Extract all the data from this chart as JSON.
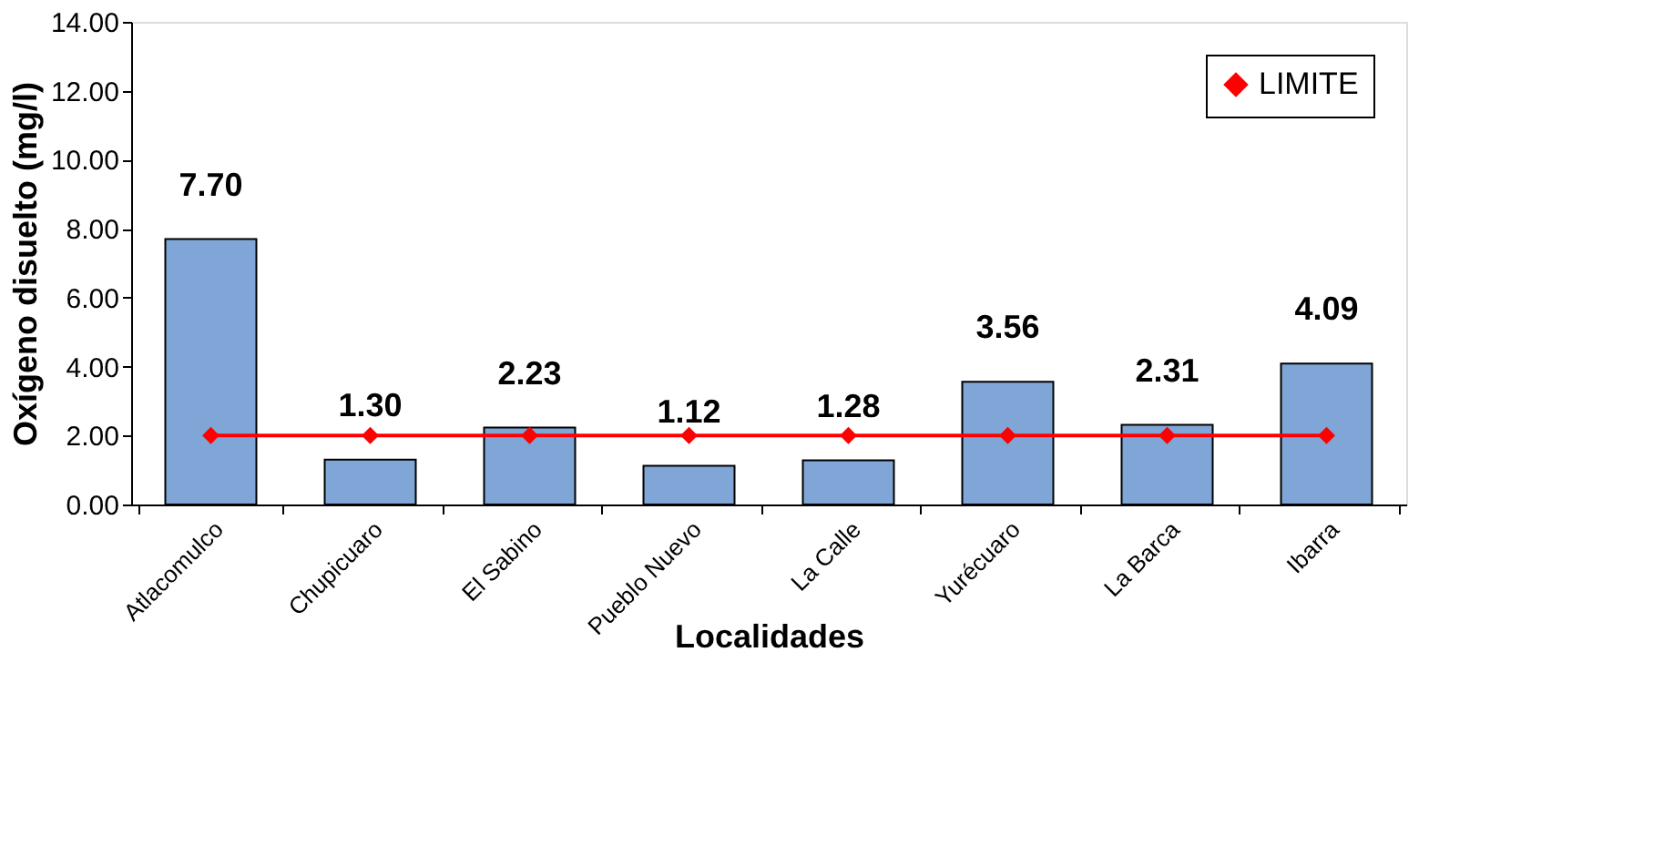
{
  "chart_data": {
    "type": "bar",
    "xlabel": "Localidades",
    "ylabel": "Oxígeno disuelto (mg/l)",
    "categories": [
      "Atlacomulco",
      "Chupicuaro",
      "El Sabino",
      "Pueblo Nuevo",
      "La Calle",
      "Yurécuaro",
      "La Barca",
      "Ibarra"
    ],
    "series": [
      {
        "color": "#7fa6d6",
        "values": [
          7.7,
          1.3,
          2.23,
          1.12,
          1.28,
          3.56,
          2.31,
          4.09
        ],
        "value_labels": [
          "7.70",
          "1.30",
          "2.23",
          "1.12",
          "1.28",
          "3.56",
          "2.31",
          "4.09"
        ]
      },
      {
        "type": "line",
        "name": "LIMITE",
        "color": "#ff0000",
        "marker": "diamond",
        "values": [
          2,
          2,
          2,
          2,
          2,
          2,
          2,
          2
        ]
      }
    ],
    "ylim": [
      0,
      14
    ],
    "yticks": [
      {
        "value": 0,
        "label": "0.00"
      },
      {
        "value": 2,
        "label": "2.00"
      },
      {
        "value": 4,
        "label": "4.00"
      },
      {
        "value": 6,
        "label": "6.00"
      },
      {
        "value": 8,
        "label": "8.00"
      },
      {
        "value": 10,
        "label": "10.00"
      },
      {
        "value": 12,
        "label": "12.00"
      },
      {
        "value": 14,
        "label": "14.00"
      }
    ],
    "grid": false,
    "legend": "top right"
  }
}
